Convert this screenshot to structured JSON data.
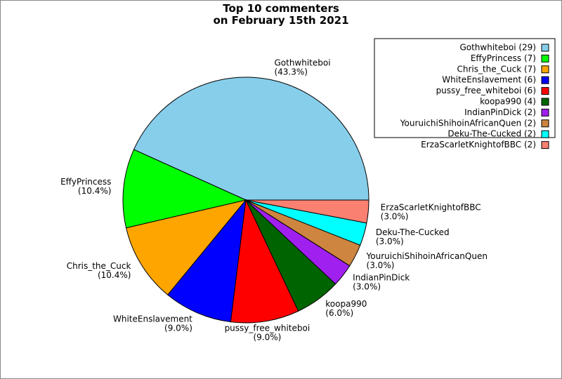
{
  "chart_data": {
    "type": "pie",
    "title": "Top 10 commenters\non February 15th 2021",
    "categories": [
      "Gothwhiteboi",
      "EffyPrincess",
      "Chris_the_Cuck",
      "WhiteEnslavement",
      "pussy_free_whiteboi",
      "koopa990",
      "IndianPinDick",
      "YouruichiShihoinAfricanQuen",
      "Deku-The-Cucked",
      "ErzaScarletKnightofBBC"
    ],
    "values": [
      43.3,
      10.4,
      10.4,
      9.0,
      9.0,
      6.0,
      3.0,
      3.0,
      3.0,
      3.0
    ],
    "value_labels": [
      "(43.3%)",
      "(10.4%)",
      "(10.4%)",
      "(9.0%)",
      "(9.0%)",
      "(6.0%)",
      "(3.0%)",
      "(3.0%)",
      "(3.0%)",
      "(3.0%)"
    ],
    "counts": [
      29,
      7,
      7,
      6,
      6,
      4,
      2,
      2,
      2,
      2
    ],
    "legend_labels": [
      "Gothwhiteboi (29)",
      "EffyPrincess (7)",
      "Chris_the_Cuck (7)",
      "WhiteEnslavement (6)",
      "pussy_free_whiteboi (6)",
      "koopa990 (4)",
      "IndianPinDick (2)",
      "YouruichiShihoinAfricanQuen (2)",
      "Deku-The-Cucked (2)",
      "ErzaScarletKnightofBBC (2)"
    ],
    "colors": [
      "#87ceeb",
      "#00ff00",
      "#ffa500",
      "#0000ff",
      "#ff0000",
      "#006400",
      "#a020f0",
      "#cd853f",
      "#00ffff",
      "#fa8072"
    ],
    "legend_position": "upper right"
  }
}
